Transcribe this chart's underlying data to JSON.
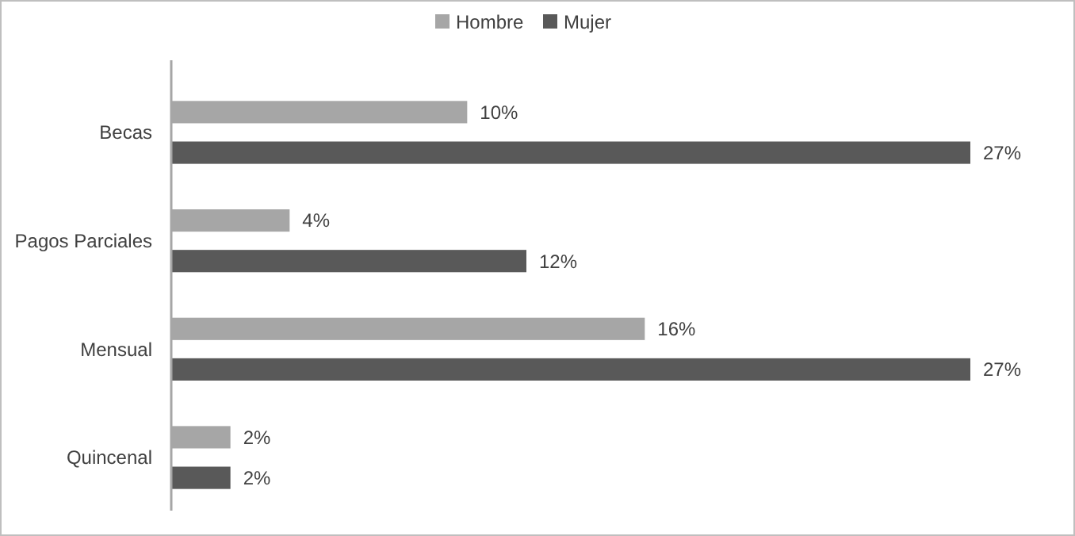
{
  "chart_data": {
    "type": "bar",
    "orientation": "horizontal",
    "categories": [
      "Becas",
      "Pagos Parciales",
      "Mensual",
      "Quincenal"
    ],
    "series": [
      {
        "name": "Hombre",
        "color": "#a6a6a6",
        "values": [
          10,
          4,
          16,
          2
        ],
        "value_labels": [
          "10%",
          "4%",
          "16%",
          "2%"
        ]
      },
      {
        "name": "Mujer",
        "color": "#595959",
        "values": [
          27,
          12,
          27,
          2
        ],
        "value_labels": [
          "27%",
          "12%",
          "27%",
          "2%"
        ]
      }
    ],
    "legend": "top",
    "grid": false
  }
}
